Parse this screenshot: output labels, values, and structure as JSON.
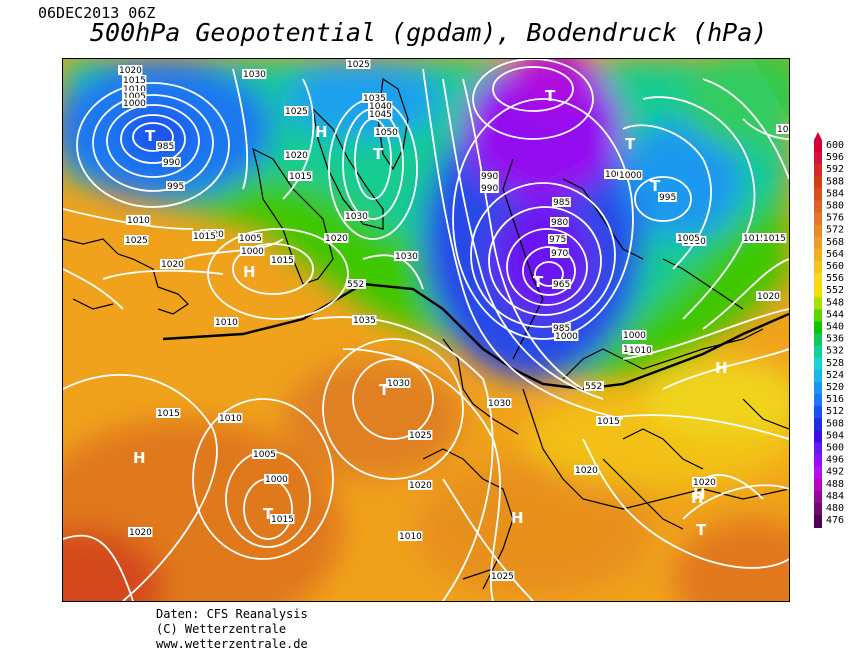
{
  "header": {
    "date": "06DEC2013 06Z",
    "title": "500hPa Geopotential (gpdam), Bodendruck (hPa)"
  },
  "legend": {
    "values": [
      "600",
      "596",
      "592",
      "588",
      "584",
      "580",
      "576",
      "572",
      "568",
      "564",
      "560",
      "556",
      "552",
      "548",
      "544",
      "540",
      "536",
      "532",
      "528",
      "524",
      "520",
      "516",
      "512",
      "508",
      "504",
      "500",
      "496",
      "492",
      "488",
      "484",
      "480",
      "476"
    ],
    "colors": [
      "#d4003c",
      "#d4143c",
      "#d42a28",
      "#d43c14",
      "#d65020",
      "#dc6428",
      "#e07a28",
      "#e68c28",
      "#ec9e24",
      "#f0b020",
      "#f4c41c",
      "#f8d818",
      "#f0e000",
      "#a8e000",
      "#5cd400",
      "#10c400",
      "#10c85c",
      "#10d0a0",
      "#18d4d4",
      "#18b8e8",
      "#1a98f0",
      "#1e78f0",
      "#1c50f0",
      "#2030e0",
      "#3a10e8",
      "#6a18f0",
      "#9410f0",
      "#b810e8",
      "#b408c0",
      "#940898",
      "#700870",
      "#500050"
    ]
  },
  "map": {
    "isobar_labels": [
      "1020",
      "1015",
      "1010",
      "1005",
      "1000",
      "985",
      "990",
      "995",
      "1030",
      "1025",
      "1020",
      "1015",
      "1025",
      "1035",
      "1040",
      "1045",
      "1050",
      "1030",
      "1020",
      "1030",
      "995",
      "990",
      "985",
      "980",
      "975",
      "970",
      "965",
      "985",
      "1000",
      "1005",
      "1010",
      "1015",
      "1020",
      "1010",
      "1005",
      "1000",
      "1015",
      "1020",
      "1010",
      "1025",
      "1035",
      "1030",
      "1030",
      "1025",
      "1020",
      "1010",
      "1015",
      "1010",
      "1005",
      "1000",
      "1015",
      "1020",
      "1025",
      "1010",
      "1015",
      "1020",
      "1020",
      "1030",
      "1000",
      "995",
      "990",
      "1000",
      "1005",
      "1015",
      "1020",
      "1010",
      "1015"
    ],
    "contour_labels": [
      "552",
      "552"
    ],
    "pressure_systems": [
      {
        "label": "T",
        "type": "low"
      },
      {
        "label": "T",
        "type": "low"
      },
      {
        "label": "H",
        "type": "high"
      },
      {
        "label": "T",
        "type": "low"
      },
      {
        "label": "T",
        "type": "low"
      },
      {
        "label": "H",
        "type": "high"
      },
      {
        "label": "T",
        "type": "low"
      },
      {
        "label": "T",
        "type": "low"
      },
      {
        "label": "H",
        "type": "high"
      },
      {
        "label": "T",
        "type": "low"
      },
      {
        "label": "T",
        "type": "low"
      },
      {
        "label": "H",
        "type": "high"
      },
      {
        "label": "H",
        "type": "high"
      },
      {
        "label": "H",
        "type": "high"
      },
      {
        "label": "T",
        "type": "low"
      },
      {
        "label": "H",
        "type": "high"
      }
    ]
  },
  "footer": {
    "line1": "Daten: CFS Reanalysis",
    "line2": "(C) Wetterzentrale",
    "line3": "www.wetterzentrale.de"
  }
}
